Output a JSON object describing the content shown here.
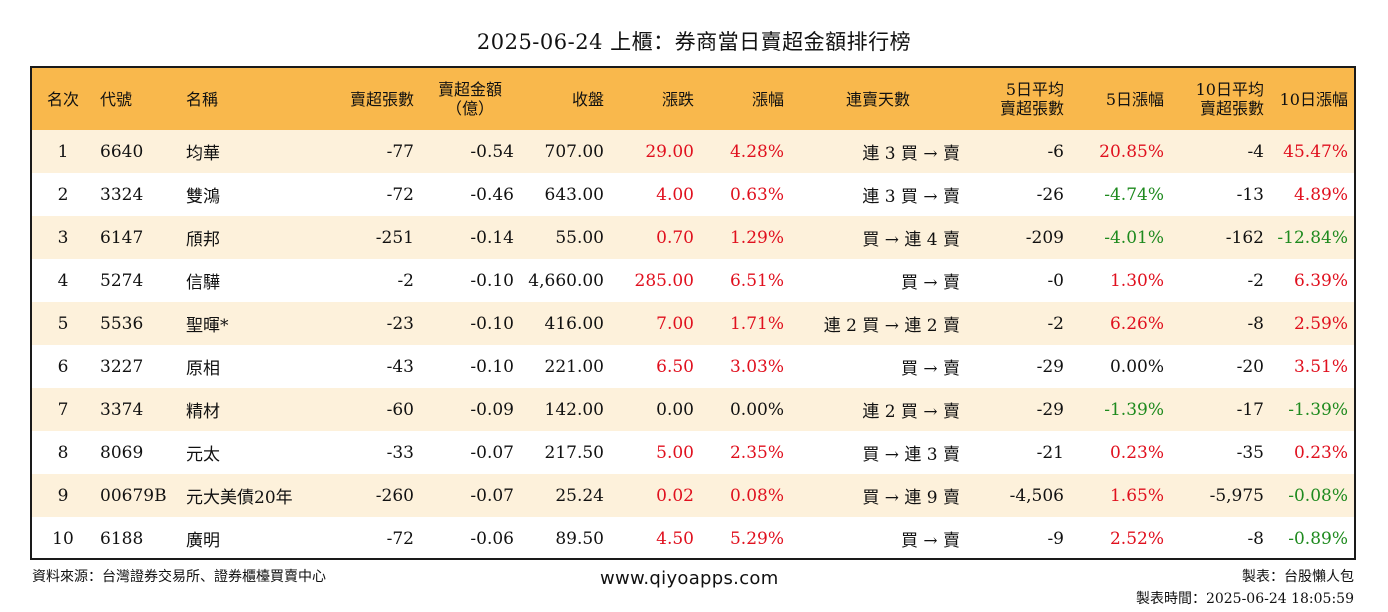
{
  "title": "2025-06-24 上櫃：券商當日賣超金額排行榜",
  "headers": {
    "rank": "名次",
    "code": "代號",
    "name": "名稱",
    "sell_shares": "賣超張數",
    "sell_amount_1": "賣超金額",
    "sell_amount_2": "（億）",
    "close": "收盤",
    "change": "漲跌",
    "pct": "漲幅",
    "days": "連賣天數",
    "avg5_1": "5日平均",
    "avg5_2": "賣超張數",
    "pct5": "5日漲幅",
    "avg10_1": "10日平均",
    "avg10_2": "賣超張數",
    "pct10": "10日漲幅"
  },
  "rows": [
    {
      "rank": "1",
      "code": "6640",
      "name": "均華",
      "shares": "-77",
      "amount": "-0.54",
      "close": "707.00",
      "change": "29.00",
      "pct": "4.28%",
      "days": "連 3 買 → 賣",
      "avg5": "-6",
      "pct5": "20.85%",
      "avg10": "-4",
      "pct10": "45.47%"
    },
    {
      "rank": "2",
      "code": "3324",
      "name": "雙鴻",
      "shares": "-72",
      "amount": "-0.46",
      "close": "643.00",
      "change": "4.00",
      "pct": "0.63%",
      "days": "連 3 買 → 賣",
      "avg5": "-26",
      "pct5": "-4.74%",
      "avg10": "-13",
      "pct10": "4.89%"
    },
    {
      "rank": "3",
      "code": "6147",
      "name": "頎邦",
      "shares": "-251",
      "amount": "-0.14",
      "close": "55.00",
      "change": "0.70",
      "pct": "1.29%",
      "days": "買 → 連 4 賣",
      "avg5": "-209",
      "pct5": "-4.01%",
      "avg10": "-162",
      "pct10": "-12.84%"
    },
    {
      "rank": "4",
      "code": "5274",
      "name": "信驊",
      "shares": "-2",
      "amount": "-0.10",
      "close": "4,660.00",
      "change": "285.00",
      "pct": "6.51%",
      "days": "買 → 賣",
      "avg5": "-0",
      "pct5": "1.30%",
      "avg10": "-2",
      "pct10": "6.39%"
    },
    {
      "rank": "5",
      "code": "5536",
      "name": "聖暉*",
      "shares": "-23",
      "amount": "-0.10",
      "close": "416.00",
      "change": "7.00",
      "pct": "1.71%",
      "days": "連 2 買 → 連 2 賣",
      "avg5": "-2",
      "pct5": "6.26%",
      "avg10": "-8",
      "pct10": "2.59%"
    },
    {
      "rank": "6",
      "code": "3227",
      "name": "原相",
      "shares": "-43",
      "amount": "-0.10",
      "close": "221.00",
      "change": "6.50",
      "pct": "3.03%",
      "days": "買 → 賣",
      "avg5": "-29",
      "pct5": "0.00%",
      "avg10": "-20",
      "pct10": "3.51%"
    },
    {
      "rank": "7",
      "code": "3374",
      "name": "精材",
      "shares": "-60",
      "amount": "-0.09",
      "close": "142.00",
      "change": "0.00",
      "pct": "0.00%",
      "days": "連 2 買 → 賣",
      "avg5": "-29",
      "pct5": "-1.39%",
      "avg10": "-17",
      "pct10": "-1.39%"
    },
    {
      "rank": "8",
      "code": "8069",
      "name": "元太",
      "shares": "-33",
      "amount": "-0.07",
      "close": "217.50",
      "change": "5.00",
      "pct": "2.35%",
      "days": "買 → 連 3 賣",
      "avg5": "-21",
      "pct5": "0.23%",
      "avg10": "-35",
      "pct10": "0.23%"
    },
    {
      "rank": "9",
      "code": "00679B",
      "name": "元大美債20年",
      "shares": "-260",
      "amount": "-0.07",
      "close": "25.24",
      "change": "0.02",
      "pct": "0.08%",
      "days": "買 → 連 9 賣",
      "avg5": "-4,506",
      "pct5": "1.65%",
      "avg10": "-5,975",
      "pct10": "-0.08%"
    },
    {
      "rank": "10",
      "code": "6188",
      "name": "廣明",
      "shares": "-72",
      "amount": "-0.06",
      "close": "89.50",
      "change": "4.50",
      "pct": "5.29%",
      "days": "買 → 賣",
      "avg5": "-9",
      "pct5": "2.52%",
      "avg10": "-8",
      "pct10": "-0.89%"
    }
  ],
  "footer": {
    "source": "資料來源：台灣證券交易所、證券櫃檯買賣中心",
    "website": "www.qiyoapps.com",
    "maker": "製表：台股懶人包",
    "time": "製表時間：2025-06-24 18:05:59"
  },
  "colors": {
    "header_bg": "#f9b84c",
    "stripe_bg": "#fdf1db",
    "positive": "#e0101e",
    "negative": "#1e8a1e"
  }
}
